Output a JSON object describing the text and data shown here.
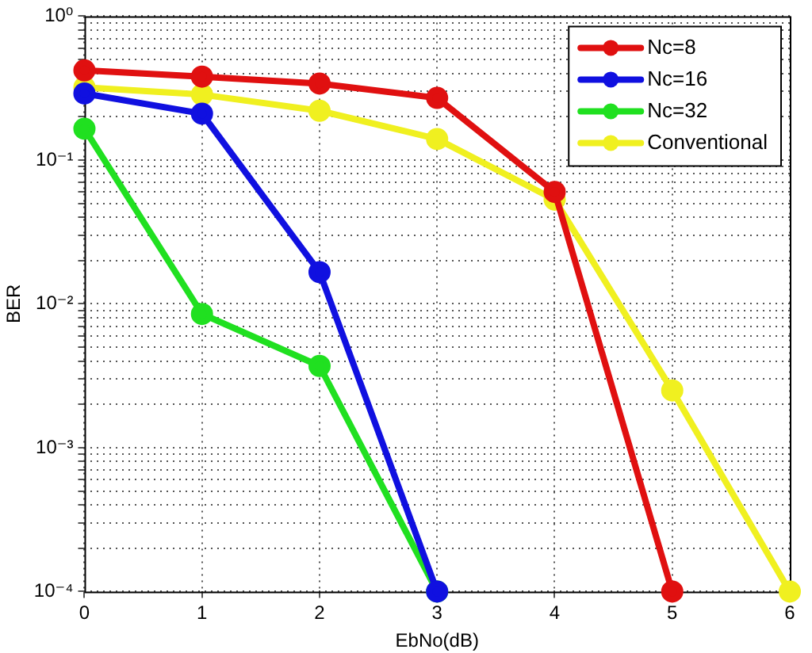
{
  "chart_data": {
    "type": "line",
    "xlabel": "EbNo(dB)",
    "ylabel": "BER",
    "x": [
      0,
      1,
      2,
      3,
      4,
      5,
      6
    ],
    "series": [
      {
        "name": "Nc=8",
        "color": "#e01010",
        "values": [
          0.42,
          0.38,
          0.34,
          0.27,
          0.06,
          0.0001,
          null
        ]
      },
      {
        "name": "Nc=16",
        "color": "#1010e0",
        "values": [
          0.29,
          0.21,
          0.0166,
          0.0001,
          null,
          null,
          null
        ]
      },
      {
        "name": "Nc=32",
        "color": "#20e020",
        "values": [
          0.165,
          0.0085,
          0.0037,
          0.0001,
          null,
          null,
          null
        ]
      },
      {
        "name": "Conventional",
        "color": "#f0f020",
        "values": [
          0.32,
          0.285,
          0.22,
          0.14,
          0.053,
          0.0025,
          0.0001
        ]
      }
    ],
    "xlim": [
      0,
      6
    ],
    "xticks": [
      0,
      1,
      2,
      3,
      4,
      5,
      6
    ],
    "ylim": [
      0.0001,
      1
    ],
    "log": true,
    "yticks": [
      {
        "value": 0.0001,
        "label": "10⁻⁴"
      },
      {
        "value": 0.0002,
        "label": null
      },
      {
        "value": 0.0003,
        "label": null
      },
      {
        "value": 0.0004,
        "label": null
      },
      {
        "value": 0.0005,
        "label": null
      },
      {
        "value": 0.0006,
        "label": null
      },
      {
        "value": 0.0007,
        "label": null
      },
      {
        "value": 0.0008,
        "label": null
      },
      {
        "value": 0.0009,
        "label": null
      },
      {
        "value": 0.001,
        "label": "10⁻³"
      },
      {
        "value": 0.002,
        "label": null
      },
      {
        "value": 0.003,
        "label": null
      },
      {
        "value": 0.004,
        "label": null
      },
      {
        "value": 0.005,
        "label": null
      },
      {
        "value": 0.006,
        "label": null
      },
      {
        "value": 0.007,
        "label": null
      },
      {
        "value": 0.008,
        "label": null
      },
      {
        "value": 0.009,
        "label": null
      },
      {
        "value": 0.01,
        "label": "10⁻²"
      },
      {
        "value": 0.02,
        "label": null
      },
      {
        "value": 0.03,
        "label": null
      },
      {
        "value": 0.04,
        "label": null
      },
      {
        "value": 0.05,
        "label": null
      },
      {
        "value": 0.06,
        "label": null
      },
      {
        "value": 0.07,
        "label": null
      },
      {
        "value": 0.08,
        "label": null
      },
      {
        "value": 0.09,
        "label": null
      },
      {
        "value": 0.1,
        "label": "10⁻¹"
      },
      {
        "value": 0.2,
        "label": null
      },
      {
        "value": 0.3,
        "label": null
      },
      {
        "value": 0.4,
        "label": null
      },
      {
        "value": 0.5,
        "label": null
      },
      {
        "value": 0.6,
        "label": null
      },
      {
        "value": 0.7,
        "label": null
      },
      {
        "value": 0.8,
        "label": null
      },
      {
        "value": 0.9,
        "label": null
      },
      {
        "value": 1,
        "label": "10⁰"
      }
    ],
    "grid": true,
    "legend": "top right",
    "marker": "circle",
    "line_style": "solid"
  }
}
